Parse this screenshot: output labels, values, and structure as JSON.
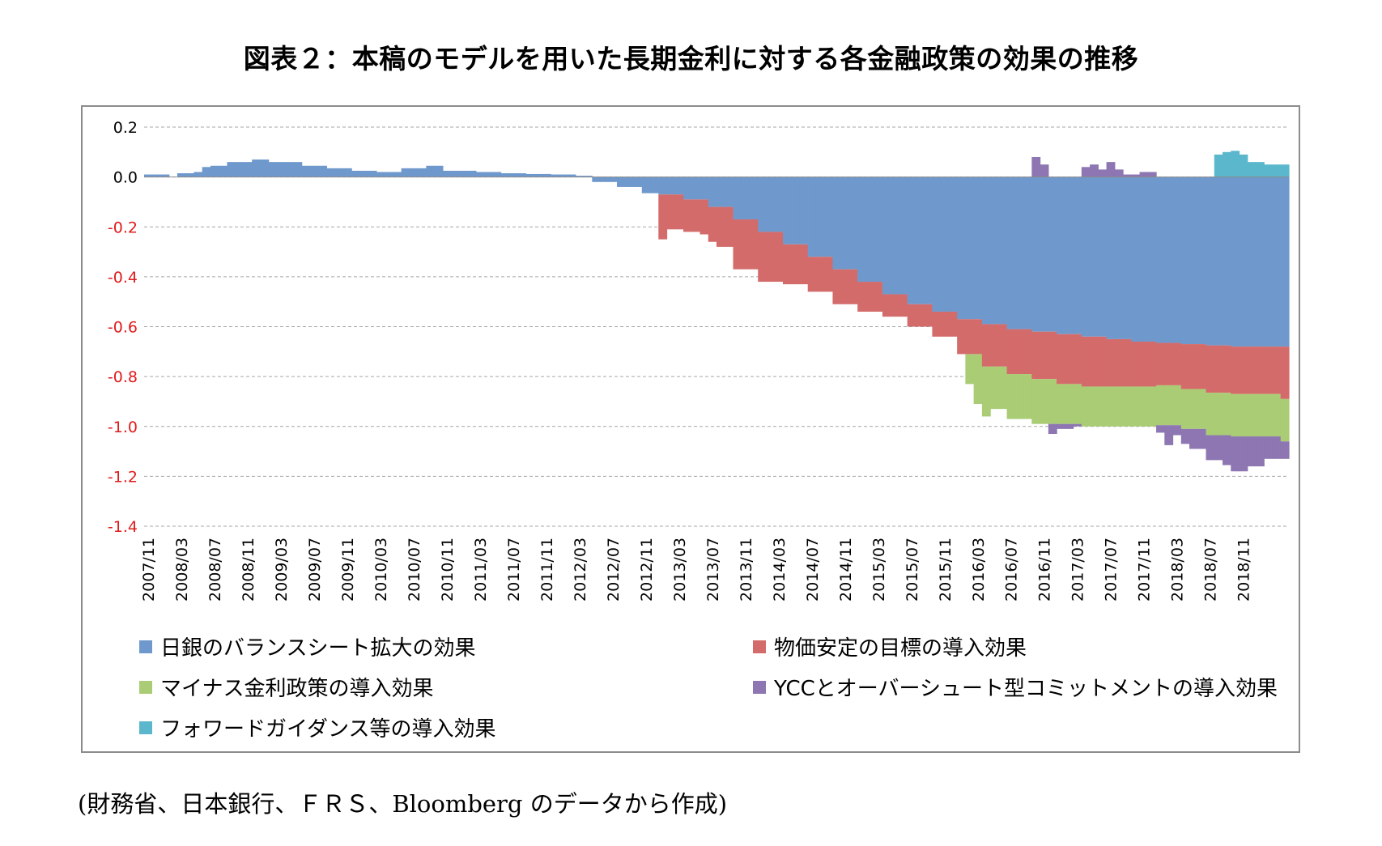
{
  "title": "図表２：本稿のモデルを用いた長期金利に対する各金融政策の効果の推移",
  "source": "(財務省、日本銀行、ＦＲＳ、Bloomberg のデータから作成)",
  "colors": {
    "balance_sheet": "#6f99cc",
    "price_target": "#d46b6b",
    "negative_rate": "#a9cc74",
    "ycc": "#8d76b1",
    "forward_guidance": "#5bb8cc",
    "grid": "#a6a6a6",
    "negative_tick": "#e01b1b"
  },
  "chart_data": {
    "type": "area",
    "stacked": true,
    "step": true,
    "title": "図表２：本稿のモデルを用いた長期金利に対する各金融政策の効果の推移",
    "xlabel": "",
    "ylabel": "",
    "ylim": [
      -1.4,
      0.2
    ],
    "yticks": [
      "0.2",
      "0.0",
      "-0.2",
      "-0.4",
      "-0.6",
      "-0.8",
      "-1.0",
      "-1.2",
      "-1.4"
    ],
    "x_tick_labels": [
      "2007/11",
      "2008/03",
      "2008/07",
      "2008/11",
      "2009/03",
      "2009/07",
      "2009/11",
      "2010/03",
      "2010/07",
      "2010/11",
      "2011/03",
      "2011/07",
      "2011/11",
      "2012/03",
      "2012/07",
      "2012/11",
      "2013/03",
      "2013/07",
      "2013/11",
      "2014/03",
      "2014/07",
      "2014/11",
      "2015/03",
      "2015/07",
      "2015/11",
      "2016/03",
      "2016/07",
      "2016/11",
      "2017/03",
      "2017/07",
      "2017/11",
      "2018/03",
      "2018/07",
      "2018/11"
    ],
    "x_start": "2007/11",
    "x_end": "2019/04",
    "frequency": "monthly",
    "grid": true,
    "legend_position": "bottom",
    "series_order": [
      "balance_sheet",
      "price_target",
      "negative_rate",
      "ycc",
      "forward_guidance"
    ],
    "series": [
      {
        "key": "balance_sheet",
        "name": "日銀のバランスシート拡大の効果",
        "points": [
          [
            "2007/11",
            0.01
          ],
          [
            "2008/02",
            0.0
          ],
          [
            "2008/03",
            0.015
          ],
          [
            "2008/05",
            0.02
          ],
          [
            "2008/06",
            0.04
          ],
          [
            "2008/07",
            0.045
          ],
          [
            "2008/09",
            0.06
          ],
          [
            "2008/12",
            0.07
          ],
          [
            "2009/02",
            0.06
          ],
          [
            "2009/06",
            0.045
          ],
          [
            "2009/09",
            0.035
          ],
          [
            "2009/12",
            0.025
          ],
          [
            "2010/03",
            0.02
          ],
          [
            "2010/06",
            0.035
          ],
          [
            "2010/09",
            0.045
          ],
          [
            "2010/11",
            0.025
          ],
          [
            "2011/03",
            0.02
          ],
          [
            "2011/06",
            0.015
          ],
          [
            "2011/09",
            0.012
          ],
          [
            "2011/12",
            0.01
          ],
          [
            "2012/03",
            0.005
          ],
          [
            "2012/05",
            -0.02
          ],
          [
            "2012/08",
            -0.04
          ],
          [
            "2012/11",
            -0.065
          ],
          [
            "2013/01",
            -0.07
          ],
          [
            "2013/04",
            -0.09
          ],
          [
            "2013/07",
            -0.12
          ],
          [
            "2013/10",
            -0.17
          ],
          [
            "2014/01",
            -0.22
          ],
          [
            "2014/04",
            -0.27
          ],
          [
            "2014/07",
            -0.32
          ],
          [
            "2014/10",
            -0.37
          ],
          [
            "2015/01",
            -0.42
          ],
          [
            "2015/04",
            -0.47
          ],
          [
            "2015/07",
            -0.51
          ],
          [
            "2015/10",
            -0.54
          ],
          [
            "2016/01",
            -0.57
          ],
          [
            "2016/04",
            -0.59
          ],
          [
            "2016/07",
            -0.61
          ],
          [
            "2016/10",
            -0.62
          ],
          [
            "2017/01",
            -0.63
          ],
          [
            "2017/04",
            -0.64
          ],
          [
            "2017/07",
            -0.65
          ],
          [
            "2017/10",
            -0.66
          ],
          [
            "2018/01",
            -0.665
          ],
          [
            "2018/04",
            -0.67
          ],
          [
            "2018/07",
            -0.675
          ],
          [
            "2018/10",
            -0.68
          ],
          [
            "2019/04",
            -0.68
          ]
        ]
      },
      {
        "key": "price_target",
        "name": "物価安定の目標の導入効果",
        "points": [
          [
            "2007/11",
            0.0
          ],
          [
            "2012/12",
            0.0
          ],
          [
            "2013/01",
            -0.18
          ],
          [
            "2013/02",
            -0.14
          ],
          [
            "2013/04",
            -0.13
          ],
          [
            "2013/06",
            -0.14
          ],
          [
            "2013/08",
            -0.16
          ],
          [
            "2013/10",
            -0.2
          ],
          [
            "2014/01",
            -0.2
          ],
          [
            "2014/04",
            -0.16
          ],
          [
            "2014/07",
            -0.14
          ],
          [
            "2014/10",
            -0.14
          ],
          [
            "2015/01",
            -0.12
          ],
          [
            "2015/04",
            -0.09
          ],
          [
            "2015/07",
            -0.09
          ],
          [
            "2015/10",
            -0.1
          ],
          [
            "2016/01",
            -0.14
          ],
          [
            "2016/04",
            -0.17
          ],
          [
            "2016/07",
            -0.18
          ],
          [
            "2016/10",
            -0.19
          ],
          [
            "2017/01",
            -0.2
          ],
          [
            "2017/04",
            -0.2
          ],
          [
            "2017/07",
            -0.19
          ],
          [
            "2017/10",
            -0.18
          ],
          [
            "2018/01",
            -0.17
          ],
          [
            "2018/04",
            -0.18
          ],
          [
            "2018/07",
            -0.19
          ],
          [
            "2018/10",
            -0.19
          ],
          [
            "2019/04",
            -0.21
          ]
        ]
      },
      {
        "key": "negative_rate",
        "name": "マイナス金利政策の導入効果",
        "points": [
          [
            "2007/11",
            0.0
          ],
          [
            "2016/01",
            0.0
          ],
          [
            "2016/02",
            -0.12
          ],
          [
            "2016/03",
            -0.2
          ],
          [
            "2016/05",
            -0.17
          ],
          [
            "2016/07",
            -0.18
          ],
          [
            "2016/10",
            -0.18
          ],
          [
            "2017/01",
            -0.16
          ],
          [
            "2017/04",
            -0.16
          ],
          [
            "2017/07",
            -0.16
          ],
          [
            "2017/10",
            -0.16
          ],
          [
            "2018/01",
            -0.16
          ],
          [
            "2018/04",
            -0.16
          ],
          [
            "2018/07",
            -0.17
          ],
          [
            "2018/10",
            -0.17
          ],
          [
            "2019/04",
            -0.17
          ]
        ]
      },
      {
        "key": "ycc",
        "name": "YCCとオーバーシュート型コミットメントの導入効果",
        "points": [
          [
            "2007/11",
            0.0
          ],
          [
            "2016/09",
            0.0
          ],
          [
            "2016/10",
            0.08
          ],
          [
            "2016/11",
            0.05
          ],
          [
            "2016/12",
            -0.04
          ],
          [
            "2017/01",
            -0.02
          ],
          [
            "2017/03",
            -0.01
          ],
          [
            "2017/04",
            0.04
          ],
          [
            "2017/05",
            0.05
          ],
          [
            "2017/06",
            0.03
          ],
          [
            "2017/07",
            0.06
          ],
          [
            "2017/08",
            0.03
          ],
          [
            "2017/09",
            0.01
          ],
          [
            "2017/11",
            0.02
          ],
          [
            "2018/01",
            -0.03
          ],
          [
            "2018/02",
            -0.08
          ],
          [
            "2018/03",
            -0.04
          ],
          [
            "2018/04",
            -0.06
          ],
          [
            "2018/05",
            -0.08
          ],
          [
            "2018/07",
            -0.1
          ],
          [
            "2018/09",
            -0.12
          ],
          [
            "2018/10",
            -0.14
          ],
          [
            "2018/12",
            -0.12
          ],
          [
            "2019/02",
            -0.09
          ],
          [
            "2019/04",
            -0.07
          ]
        ]
      },
      {
        "key": "forward_guidance",
        "name": "フォワードガイダンス等の導入効果",
        "points": [
          [
            "2007/11",
            0.0
          ],
          [
            "2018/07",
            0.0
          ],
          [
            "2018/08",
            0.09
          ],
          [
            "2018/09",
            0.1
          ],
          [
            "2018/10",
            0.105
          ],
          [
            "2018/11",
            0.09
          ],
          [
            "2018/12",
            0.06
          ],
          [
            "2019/02",
            0.05
          ],
          [
            "2019/04",
            0.05
          ]
        ]
      }
    ]
  }
}
